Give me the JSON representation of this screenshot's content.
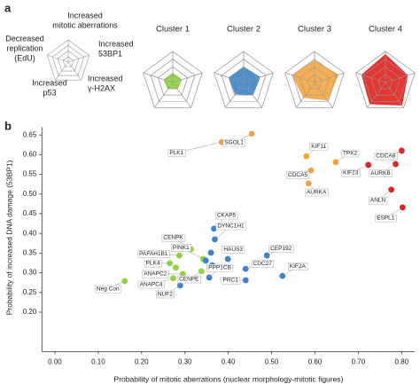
{
  "chart_data": [
    {
      "type": "radar",
      "panel": "a",
      "axes": [
        [
          "Increased",
          "mitotic aberrations"
        ],
        [
          "Increased",
          "53BP1"
        ],
        [
          "Increased",
          "γ-H2AX"
        ],
        [
          "Increased",
          "p53"
        ],
        [
          "Decreased",
          "replication",
          "(EdU)"
        ]
      ],
      "rlim": [
        0,
        1
      ],
      "rticks": [
        0.25,
        0.5,
        0.75,
        1
      ],
      "series": [
        {
          "name": "Cluster 1",
          "color": "#8dd63c",
          "values": [
            0.3,
            0.3,
            0.25,
            0.25,
            0.3
          ]
        },
        {
          "name": "Cluster 2",
          "color": "#3b82c9",
          "values": [
            0.5,
            0.55,
            0.5,
            0.45,
            0.5
          ]
        },
        {
          "name": "Cluster 3",
          "color": "#f5a540",
          "values": [
            0.7,
            0.8,
            0.7,
            0.6,
            0.75
          ]
        },
        {
          "name": "Cluster 4",
          "color": "#e0201c",
          "values": [
            0.9,
            0.75,
            0.9,
            0.85,
            0.8
          ]
        }
      ]
    },
    {
      "type": "scatter",
      "panel": "b",
      "xlabel": "Probability of mitotic aberrations (nuclear morphology-mitotic figures)",
      "ylabel": "Probability of increased DNA damage (53BP1)",
      "xlim": [
        -0.03,
        0.83
      ],
      "ylim": [
        0.1,
        0.67
      ],
      "xticks": [
        {
          "value": 0,
          "label": "0.00"
        },
        {
          "value": 0.1,
          "label": "0.10"
        },
        {
          "value": 0.2,
          "label": "0.20"
        },
        {
          "value": 0.3,
          "label": "0.30"
        },
        {
          "value": 0.4,
          "label": "0.40"
        },
        {
          "value": 0.5,
          "label": "0.50"
        },
        {
          "value": 0.6,
          "label": "0.60"
        },
        {
          "value": 0.7,
          "label": "0.70"
        },
        {
          "value": 0.8,
          "label": "0.80"
        }
      ],
      "yticks": [
        {
          "value": 0.2,
          "label": "0.20"
        },
        0.25,
        {
          "value": 0.3,
          "label": "0.30"
        },
        0.35,
        {
          "value": 0.4,
          "label": "0.40"
        },
        0.45,
        {
          "value": 0.5,
          "label": "0.50"
        },
        0.55,
        {
          "value": 0.6,
          "label": "0.60"
        },
        0.65
      ],
      "series": [
        {
          "color": "#8dd63c",
          "x": [
            0.161,
            0.314,
            0.287,
            0.265,
            0.279,
            0.295,
            0.338,
            0.342,
            0.273
          ],
          "values": [
            0.279,
            0.36,
            0.344,
            0.324,
            0.313,
            0.297,
            0.304,
            0.335,
            0.286
          ],
          "labels": [
            "Neg Con",
            "CENPK",
            "PAFAH1B1",
            "PLK4",
            null,
            "ANAPC2",
            "CENPE",
            "PINK1",
            "ANAPC4"
          ]
        },
        {
          "color": "#3b82c9",
          "x": [
            0.367,
            0.369,
            0.36,
            0.348,
            0.363,
            0.399,
            0.356,
            0.289,
            0.44,
            0.44,
            0.489,
            0.525
          ],
          "values": [
            0.412,
            0.385,
            0.351,
            0.331,
            0.319,
            0.335,
            0.288,
            0.268,
            0.31,
            0.281,
            0.344,
            0.292
          ],
          "labels": [
            "CKAP5",
            "DYNC1H1",
            null,
            null,
            null,
            "HAUS3",
            "PPP1CB",
            "NUF2",
            "CDC27",
            "PRC1",
            "CEP192",
            "KIF2A"
          ]
        },
        {
          "color": "#f5a540",
          "x": [
            0.385,
            0.454,
            0.58,
            0.648,
            0.591,
            0.585
          ],
          "values": [
            0.632,
            0.653,
            0.596,
            0.581,
            0.56,
            0.527
          ],
          "labels": [
            "PLK1",
            "SGOL1",
            "KIF11",
            "TPX2",
            "CDCA5",
            "AURKA"
          ]
        },
        {
          "color": "#e0201c",
          "x": [
            0.723,
            0.8,
            0.786,
            0.776,
            0.802
          ],
          "values": [
            0.574,
            0.61,
            0.576,
            0.511,
            0.466
          ],
          "labels": [
            "KIF23",
            "CDCA8",
            "AURKB",
            "ANLN",
            "ESPL1"
          ]
        }
      ]
    }
  ]
}
